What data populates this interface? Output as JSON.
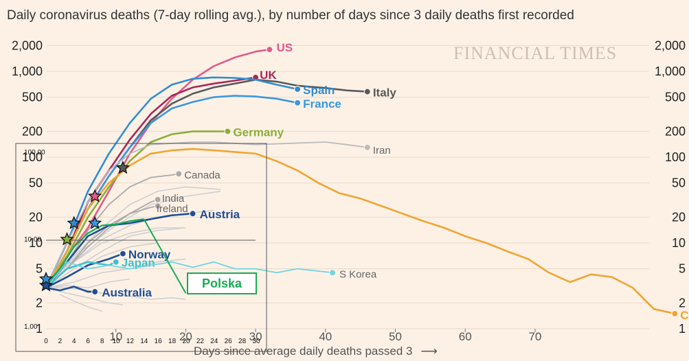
{
  "chart_data": {
    "type": "line",
    "title": "Daily coronavirus deaths (7-day rolling avg.), by number of days since 3 daily deaths first recorded",
    "xlabel": "Days since average daily deaths passed 3",
    "xlabel_arrow": "⟶",
    "brand": "FINANCIAL TIMES",
    "y_scale": "log",
    "ylim": [
      1,
      2300
    ],
    "xlim": [
      -1,
      93
    ],
    "y_ticks": [
      {
        "v": 1,
        "label": "1"
      },
      {
        "v": 2,
        "label": "2"
      },
      {
        "v": 5,
        "label": "5"
      },
      {
        "v": 10,
        "label": "10"
      },
      {
        "v": 20,
        "label": "20"
      },
      {
        "v": 50,
        "label": "50"
      },
      {
        "v": 100,
        "label": "100"
      },
      {
        "v": 200,
        "label": "200"
      },
      {
        "v": 500,
        "label": "500"
      },
      {
        "v": 1000,
        "label": "1,000"
      },
      {
        "v": 2000,
        "label": "2,000"
      }
    ],
    "x_ticks": [
      {
        "v": 10,
        "label": "10"
      },
      {
        "v": 20,
        "label": "20"
      },
      {
        "v": 30,
        "label": "30"
      },
      {
        "v": 40,
        "label": "40"
      },
      {
        "v": 50,
        "label": "50"
      },
      {
        "v": 60,
        "label": "60"
      },
      {
        "v": 70,
        "label": "70"
      }
    ],
    "series": [
      {
        "name": "US",
        "color": "#e15a8a",
        "bold": true,
        "x": [
          0,
          3,
          6,
          9,
          12,
          15,
          18,
          21,
          24,
          27,
          30,
          32
        ],
        "y": [
          3,
          7,
          15,
          40,
          110,
          250,
          480,
          800,
          1150,
          1450,
          1700,
          1800
        ]
      },
      {
        "name": "UK",
        "color": "#a8285a",
        "bold": true,
        "x": [
          0,
          3,
          6,
          9,
          12,
          15,
          18,
          21,
          24,
          27,
          30
        ],
        "y": [
          3,
          8,
          30,
          70,
          160,
          320,
          520,
          650,
          720,
          780,
          850
        ]
      },
      {
        "name": "Italy",
        "color": "#595959",
        "bold": true,
        "x": [
          0,
          3,
          6,
          9,
          12,
          15,
          18,
          21,
          24,
          27,
          30,
          33,
          36,
          40,
          43,
          46
        ],
        "y": [
          3,
          8,
          25,
          60,
          130,
          270,
          420,
          550,
          650,
          720,
          800,
          760,
          680,
          640,
          600,
          580
        ]
      },
      {
        "name": "Spain",
        "color": "#2f8dd3",
        "bold": true,
        "x": [
          0,
          3,
          6,
          9,
          12,
          15,
          18,
          21,
          24,
          27,
          30,
          33,
          36
        ],
        "y": [
          3,
          10,
          40,
          110,
          250,
          480,
          700,
          820,
          850,
          840,
          800,
          700,
          620
        ]
      },
      {
        "name": "France",
        "color": "#3a97e0",
        "bold": true,
        "x": [
          0,
          3,
          6,
          9,
          12,
          15,
          18,
          21,
          24,
          27,
          30,
          33,
          36
        ],
        "y": [
          3,
          8,
          25,
          60,
          130,
          250,
          370,
          440,
          500,
          520,
          510,
          480,
          430
        ]
      },
      {
        "name": "Germany",
        "color": "#8cae3a",
        "bold": true,
        "x": [
          0,
          3,
          6,
          9,
          12,
          15,
          18,
          21,
          24,
          26
        ],
        "y": [
          3,
          7,
          20,
          45,
          90,
          150,
          185,
          200,
          200,
          200
        ]
      },
      {
        "name": "Iran",
        "color": "#bbbbbb",
        "bold": false,
        "x": [
          0,
          3,
          6,
          9,
          12,
          15,
          18,
          21,
          24,
          27,
          30,
          35,
          40,
          43,
          46
        ],
        "y": [
          3,
          10,
          30,
          70,
          110,
          140,
          145,
          150,
          150,
          145,
          140,
          145,
          150,
          140,
          130
        ]
      },
      {
        "name": "China",
        "color": "#f0a530",
        "bold": true,
        "x": [
          0,
          3,
          6,
          9,
          12,
          15,
          18,
          21,
          24,
          27,
          30,
          33,
          36,
          39,
          42,
          45,
          48,
          51,
          54,
          57,
          60,
          63,
          66,
          69,
          72,
          75,
          78,
          81,
          84,
          87,
          90
        ],
        "y": [
          3,
          8,
          25,
          50,
          80,
          110,
          120,
          125,
          120,
          115,
          110,
          90,
          70,
          50,
          38,
          33,
          27,
          22,
          18,
          15,
          12,
          10,
          8,
          6.5,
          4.5,
          3.5,
          4.3,
          4,
          3,
          1.7,
          1.5
        ]
      },
      {
        "name": "Canada",
        "color": "#aaaaaa",
        "bold": false,
        "x": [
          0,
          3,
          6,
          9,
          12,
          15,
          18,
          19
        ],
        "y": [
          3,
          6,
          14,
          28,
          45,
          58,
          62,
          64
        ]
      },
      {
        "name": "India",
        "color": "#aaaaaa",
        "bold": false,
        "x": [
          0,
          3,
          6,
          9,
          12,
          15,
          16
        ],
        "y": [
          3,
          5,
          9,
          15,
          22,
          30,
          32
        ]
      },
      {
        "name": "Ireland",
        "color": "#aaaaaa",
        "bold": false,
        "x": [
          0,
          3,
          6,
          9,
          12,
          15,
          16
        ],
        "y": [
          3,
          5,
          10,
          16,
          22,
          26,
          27
        ]
      },
      {
        "name": "Austria",
        "color": "#1f4f96",
        "bold": true,
        "x": [
          0,
          3,
          6,
          9,
          12,
          15,
          18,
          21
        ],
        "y": [
          3,
          6,
          12,
          16,
          17,
          19,
          21,
          22
        ]
      },
      {
        "name": "Norway",
        "color": "#1f4f96",
        "bold": true,
        "x": [
          0,
          3,
          6,
          9,
          11
        ],
        "y": [
          3,
          4,
          5.5,
          6.5,
          7.5
        ]
      },
      {
        "name": "Japan",
        "color": "#3fc0cf",
        "bold": true,
        "x": [
          0,
          3,
          6,
          9,
          10
        ],
        "y": [
          3,
          5,
          6,
          5.5,
          6
        ]
      },
      {
        "name": "S Korea",
        "color": "#70d4df",
        "bold": false,
        "x": [
          0,
          3,
          6,
          9,
          12,
          15,
          18,
          21,
          24,
          27,
          30,
          33,
          36,
          41
        ],
        "y": [
          3,
          6,
          5,
          5.5,
          5,
          5.5,
          6,
          5.2,
          6,
          5,
          5,
          4.5,
          5,
          4.5
        ]
      },
      {
        "name": "Australia",
        "color": "#1f4f96",
        "bold": true,
        "x": [
          0,
          2,
          4,
          6,
          7
        ],
        "y": [
          3,
          2.8,
          3.1,
          2.7,
          2.7
        ]
      },
      {
        "name": "Polska",
        "color": "#1aaa55",
        "bold": false,
        "x": [
          0,
          2,
          4,
          6,
          8,
          10,
          12,
          14
        ],
        "y": [
          3.3,
          5,
          9,
          13,
          16,
          16.5,
          18,
          19
        ]
      }
    ],
    "background_series": [
      {
        "x": [
          0,
          4,
          8,
          12,
          16,
          20,
          25
        ],
        "y": [
          3,
          7,
          15,
          28,
          40,
          45,
          42
        ]
      },
      {
        "x": [
          0,
          5,
          10,
          15,
          20,
          25
        ],
        "y": [
          3,
          8,
          16,
          28,
          35,
          40
        ]
      },
      {
        "x": [
          0,
          4,
          8,
          12,
          16,
          20,
          24
        ],
        "y": [
          3,
          6,
          11,
          16,
          20,
          22,
          24
        ]
      },
      {
        "x": [
          0,
          4,
          8,
          12,
          16,
          20
        ],
        "y": [
          3,
          5,
          8,
          12,
          14,
          15
        ]
      },
      {
        "x": [
          0,
          4,
          8,
          12,
          16
        ],
        "y": [
          3,
          4.5,
          7,
          9,
          10
        ]
      },
      {
        "x": [
          0,
          4,
          8,
          12,
          16,
          20
        ],
        "y": [
          3,
          3.5,
          4.5,
          5,
          6,
          6.5
        ]
      },
      {
        "x": [
          0,
          3,
          6,
          9,
          12
        ],
        "y": [
          3,
          3.2,
          3,
          3.5,
          3.8
        ]
      },
      {
        "x": [
          0,
          3,
          6,
          9,
          12,
          15,
          18,
          20
        ],
        "y": [
          3,
          3,
          2.8,
          2.5,
          2.4,
          2.2,
          2.3,
          2.2
        ]
      },
      {
        "x": [
          0,
          3,
          6,
          9,
          11
        ],
        "y": [
          3,
          2.6,
          2.3,
          2,
          1.9
        ]
      },
      {
        "x": [
          2,
          4,
          6,
          8
        ],
        "y": [
          2.5,
          2.1,
          1.8,
          1.6
        ]
      },
      {
        "x": [
          0,
          4,
          8,
          12,
          16,
          20
        ],
        "y": [
          3,
          6,
          10,
          13,
          15,
          15
        ]
      }
    ],
    "inset": {
      "y_ticks": [
        {
          "v": 1,
          "label": "1,00"
        },
        {
          "v": 10,
          "label": "10,00"
        },
        {
          "v": 100,
          "label": "100,00"
        }
      ],
      "x_ticks": [
        {
          "v": 0,
          "label": "0"
        },
        {
          "v": 2,
          "label": "2"
        },
        {
          "v": 4,
          "label": "4"
        },
        {
          "v": 6,
          "label": "6"
        },
        {
          "v": 8,
          "label": "8"
        },
        {
          "v": 10,
          "label": "10"
        },
        {
          "v": 12,
          "label": "12"
        },
        {
          "v": 14,
          "label": "14"
        },
        {
          "v": 16,
          "label": "16"
        },
        {
          "v": 18,
          "label": "18"
        },
        {
          "v": 20,
          "label": "20"
        },
        {
          "v": 22,
          "label": "22"
        },
        {
          "v": 24,
          "label": "24"
        },
        {
          "v": 26,
          "label": "26"
        },
        {
          "v": 28,
          "label": "28"
        },
        {
          "v": 30,
          "label": "30"
        }
      ]
    },
    "stars": [
      {
        "x": 0,
        "y": 3.2,
        "color": "#1f4f96"
      },
      {
        "x": 0,
        "y": 3.8,
        "color": "#2f8dd3"
      },
      {
        "x": 3,
        "y": 11,
        "color": "#8cae3a"
      },
      {
        "x": 4,
        "y": 17,
        "color": "#2f8dd3"
      },
      {
        "x": 7,
        "y": 17,
        "color": "#3a97e0"
      },
      {
        "x": 7,
        "y": 35,
        "color": "#e15a8a"
      },
      {
        "x": 11,
        "y": 75,
        "color": "#595959"
      }
    ]
  }
}
